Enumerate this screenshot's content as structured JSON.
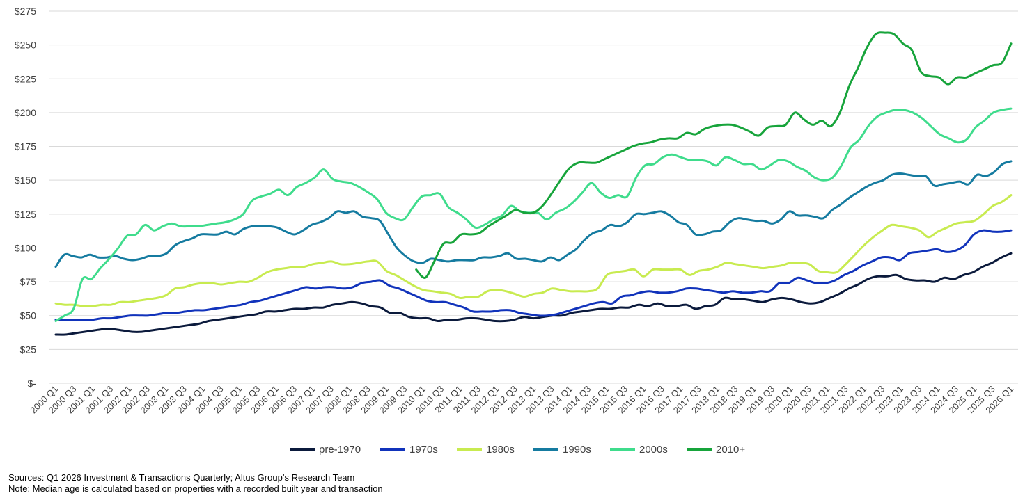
{
  "chart_data": {
    "type": "line",
    "title": "",
    "xlabel": "",
    "ylabel": "",
    "ylim": [
      0,
      275
    ],
    "y_ticks": [
      0,
      25,
      50,
      75,
      100,
      125,
      150,
      175,
      200,
      225,
      250,
      275
    ],
    "y_tick_labels": [
      "$-",
      "$25",
      "$50",
      "$75",
      "$100",
      "$125",
      "$150",
      "$175",
      "$200",
      "$225",
      "$250",
      "$275"
    ],
    "x_tick_labels": [
      "2000 Q1",
      "2000 Q3",
      "2001 Q1",
      "2001 Q3",
      "2002 Q1",
      "2002 Q3",
      "2003 Q1",
      "2003 Q3",
      "2004 Q1",
      "2004 Q3",
      "2005 Q1",
      "2005 Q3",
      "2006 Q1",
      "2006 Q3",
      "2007 Q1",
      "2007 Q3",
      "2008 Q1",
      "2008 Q3",
      "2009 Q1",
      "2009 Q3",
      "2010 Q1",
      "2010 Q3",
      "2011 Q1",
      "2011 Q3",
      "2012 Q1",
      "2012 Q3",
      "2013 Q1",
      "2013 Q3",
      "2014 Q1",
      "2014 Q3",
      "2015 Q1",
      "2015 Q3",
      "2016 Q1",
      "2016 Q3",
      "2017 Q1",
      "2017 Q3",
      "2018 Q1",
      "2018 Q3",
      "2019 Q1",
      "2019 Q3",
      "2020 Q1",
      "2020 Q3",
      "2021 Q1",
      "2021 Q3",
      "2022 Q1",
      "2022 Q3",
      "2023 Q1",
      "2023 Q3",
      "2024 Q1",
      "2024 Q3",
      "2025 Q1",
      "2025 Q3",
      "2026 Q1"
    ],
    "grid": true,
    "legend_position": "bottom",
    "series": [
      {
        "name": "pre-1970",
        "color": "#0b1a3c",
        "values": [
          36,
          36,
          37,
          38,
          39,
          40,
          40,
          39,
          38,
          38,
          39,
          40,
          41,
          42,
          43,
          44,
          46,
          47,
          48,
          49,
          50,
          51,
          53,
          53,
          54,
          55,
          55,
          56,
          56,
          58,
          59,
          60,
          59,
          57,
          56,
          52,
          52,
          49,
          48,
          48,
          46,
          47,
          47,
          48,
          48,
          47,
          46,
          46,
          47,
          49,
          48,
          49,
          50,
          50,
          52,
          53,
          54,
          55,
          55,
          56,
          56,
          58,
          57,
          59,
          57,
          57,
          58,
          55,
          57,
          58,
          63,
          62,
          62,
          61,
          60,
          62,
          63,
          62,
          60,
          59,
          60,
          63,
          66,
          70,
          73,
          77,
          79,
          79,
          80,
          77,
          76,
          76,
          75,
          78,
          77,
          80,
          82,
          86,
          89,
          93,
          96
        ]
      },
      {
        "name": "1970s",
        "color": "#1133bb",
        "values": [
          47,
          47,
          47,
          47,
          47,
          48,
          48,
          49,
          50,
          50,
          50,
          51,
          52,
          52,
          53,
          54,
          54,
          55,
          56,
          57,
          58,
          60,
          61,
          63,
          65,
          67,
          69,
          71,
          70,
          71,
          71,
          70,
          71,
          74,
          75,
          76,
          72,
          70,
          67,
          64,
          61,
          60,
          60,
          58,
          56,
          53,
          53,
          53,
          54,
          54,
          52,
          51,
          50,
          50,
          51,
          53,
          55,
          57,
          59,
          60,
          59,
          64,
          65,
          67,
          68,
          67,
          67,
          68,
          70,
          70,
          69,
          68,
          67,
          68,
          67,
          67,
          68,
          68,
          74,
          74,
          78,
          76,
          74,
          74,
          76,
          80,
          83,
          87,
          90,
          93,
          93,
          91,
          96,
          97,
          98,
          99,
          97,
          98,
          102,
          110,
          113,
          112,
          112,
          113
        ]
      },
      {
        "name": "1980s",
        "color": "#c8eb50",
        "values": [
          59,
          58,
          58,
          57,
          57,
          58,
          58,
          60,
          60,
          61,
          62,
          63,
          65,
          70,
          71,
          73,
          74,
          74,
          73,
          74,
          75,
          75,
          78,
          82,
          84,
          85,
          86,
          86,
          88,
          89,
          90,
          88,
          88,
          89,
          90,
          90,
          83,
          80,
          76,
          72,
          69,
          68,
          67,
          66,
          63,
          64,
          64,
          68,
          69,
          68,
          66,
          64,
          66,
          67,
          70,
          69,
          68,
          68,
          68,
          70,
          80,
          82,
          83,
          84,
          79,
          84,
          84,
          84,
          84,
          80,
          83,
          84,
          86,
          89,
          88,
          87,
          86,
          85,
          86,
          87,
          89,
          89,
          88,
          83,
          82,
          82,
          88,
          95,
          102,
          108,
          113,
          117,
          116,
          115,
          113,
          108,
          112,
          115,
          118,
          119,
          120,
          125,
          131,
          134,
          139
        ]
      },
      {
        "name": "1990s",
        "color": "#157ba0",
        "values": [
          86,
          95,
          94,
          93,
          95,
          93,
          93,
          94,
          92,
          91,
          92,
          94,
          94,
          96,
          102,
          105,
          107,
          110,
          110,
          110,
          112,
          110,
          114,
          116,
          116,
          116,
          115,
          112,
          110,
          113,
          117,
          119,
          122,
          127,
          126,
          127,
          123,
          122,
          120,
          110,
          100,
          94,
          90,
          89,
          92,
          91,
          90,
          91,
          91,
          91,
          93,
          93,
          94,
          96,
          92,
          92,
          91,
          90,
          93,
          91,
          95,
          99,
          106,
          111,
          113,
          117,
          116,
          119,
          125,
          125,
          126,
          127,
          124,
          119,
          117,
          110,
          110,
          112,
          113,
          119,
          122,
          121,
          120,
          120,
          118,
          121,
          127,
          124,
          124,
          123,
          122,
          128,
          132,
          137,
          141,
          145,
          148,
          150,
          154,
          155,
          154,
          153,
          153,
          146,
          147,
          148,
          149,
          147,
          154,
          153,
          156,
          162,
          164
        ]
      },
      {
        "name": "2000s",
        "color": "#3fdc8c",
        "values": [
          46,
          50,
          55,
          77,
          77,
          85,
          92,
          100,
          109,
          110,
          117,
          113,
          116,
          118,
          116,
          116,
          116,
          117,
          118,
          119,
          121,
          125,
          135,
          138,
          140,
          143,
          139,
          145,
          148,
          152,
          158,
          151,
          149,
          148,
          145,
          141,
          136,
          126,
          122,
          121,
          130,
          138,
          139,
          140,
          130,
          126,
          121,
          115,
          117,
          121,
          124,
          131,
          127,
          126,
          126,
          121,
          126,
          129,
          134,
          141,
          148,
          141,
          137,
          139,
          138,
          152,
          161,
          162,
          167,
          169,
          167,
          165,
          165,
          164,
          161,
          167,
          165,
          162,
          162,
          158,
          161,
          165,
          164,
          160,
          157,
          152,
          150,
          152,
          161,
          174,
          180,
          190,
          197,
          200,
          202,
          202,
          200,
          196,
          190,
          184,
          181,
          178,
          180,
          189,
          194,
          200,
          202,
          203
        ]
      },
      {
        "name": "2010+",
        "color": "#17a43b",
        "values": [
          null,
          null,
          null,
          null,
          null,
          null,
          null,
          null,
          null,
          null,
          null,
          null,
          null,
          null,
          null,
          null,
          null,
          null,
          null,
          null,
          null,
          null,
          null,
          null,
          null,
          null,
          null,
          null,
          null,
          null,
          null,
          null,
          null,
          null,
          null,
          null,
          null,
          null,
          null,
          null,
          84,
          78,
          90,
          103,
          104,
          110,
          110,
          111,
          116,
          120,
          124,
          128,
          126,
          126,
          131,
          140,
          150,
          159,
          163,
          163,
          163,
          166,
          169,
          172,
          175,
          177,
          178,
          180,
          181,
          181,
          185,
          184,
          188,
          190,
          191,
          191,
          189,
          186,
          183,
          189,
          190,
          191,
          200,
          195,
          191,
          194,
          190,
          200,
          219,
          233,
          248,
          258,
          259,
          258,
          251,
          246,
          230,
          227,
          226,
          221,
          226,
          226,
          229,
          232,
          235,
          237,
          251
        ]
      }
    ]
  },
  "notes": {
    "sources": "Sources: Q1 2026 Investment & Transactions Quarterly; Altus Group’s Research Team",
    "note": "Note: Median age is calculated based on properties with a recorded built year and transaction"
  }
}
